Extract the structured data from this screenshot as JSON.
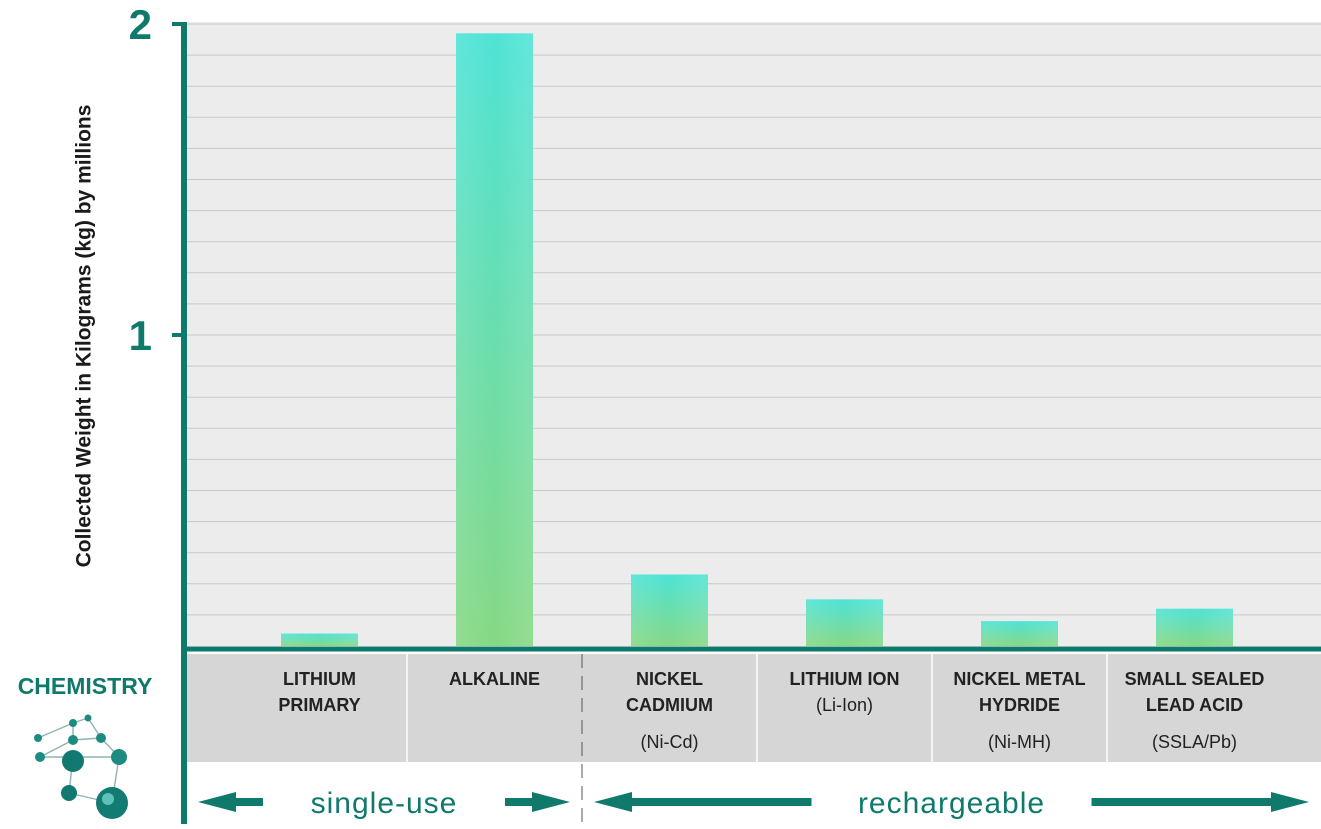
{
  "chart_data": {
    "type": "bar",
    "ylabel": "Collected Weight in Kilograms (kg) by millions",
    "ylim": [
      0,
      2
    ],
    "yticks": [
      "1",
      "2"
    ],
    "grid": true,
    "categories": [
      {
        "lines": [
          "LITHIUM",
          "PRIMARY"
        ],
        "sub": ""
      },
      {
        "lines": [
          "ALKALINE"
        ],
        "sub": ""
      },
      {
        "lines": [
          "NICKEL",
          "CADMIUM"
        ],
        "sub": "(Ni-Cd)"
      },
      {
        "lines": [
          "LITHIUM ION"
        ],
        "sub": "(Li-Ion)"
      },
      {
        "lines": [
          "NICKEL METAL",
          "HYDRIDE"
        ],
        "sub": "(Ni-MH)"
      },
      {
        "lines": [
          "SMALL SEALED",
          "LEAD ACID"
        ],
        "sub": "(SSLA/Pb)"
      }
    ],
    "values": [
      0.04,
      1.97,
      0.23,
      0.15,
      0.08,
      0.12
    ],
    "groups": [
      {
        "label": "single-use",
        "categories": 2
      },
      {
        "label": "rechargeable",
        "categories": 4
      }
    ],
    "axis_caption": "CHEMISTRY"
  },
  "colors": {
    "accent": "#0f7a6c",
    "bar_top": "#4fe3d6",
    "bar_bottom": "#86d884",
    "plot_bg": "#ececec",
    "gridline": "#c9c9c9",
    "category_band": "#d6d6d6"
  },
  "icons": [
    "molecule-network-icon"
  ]
}
